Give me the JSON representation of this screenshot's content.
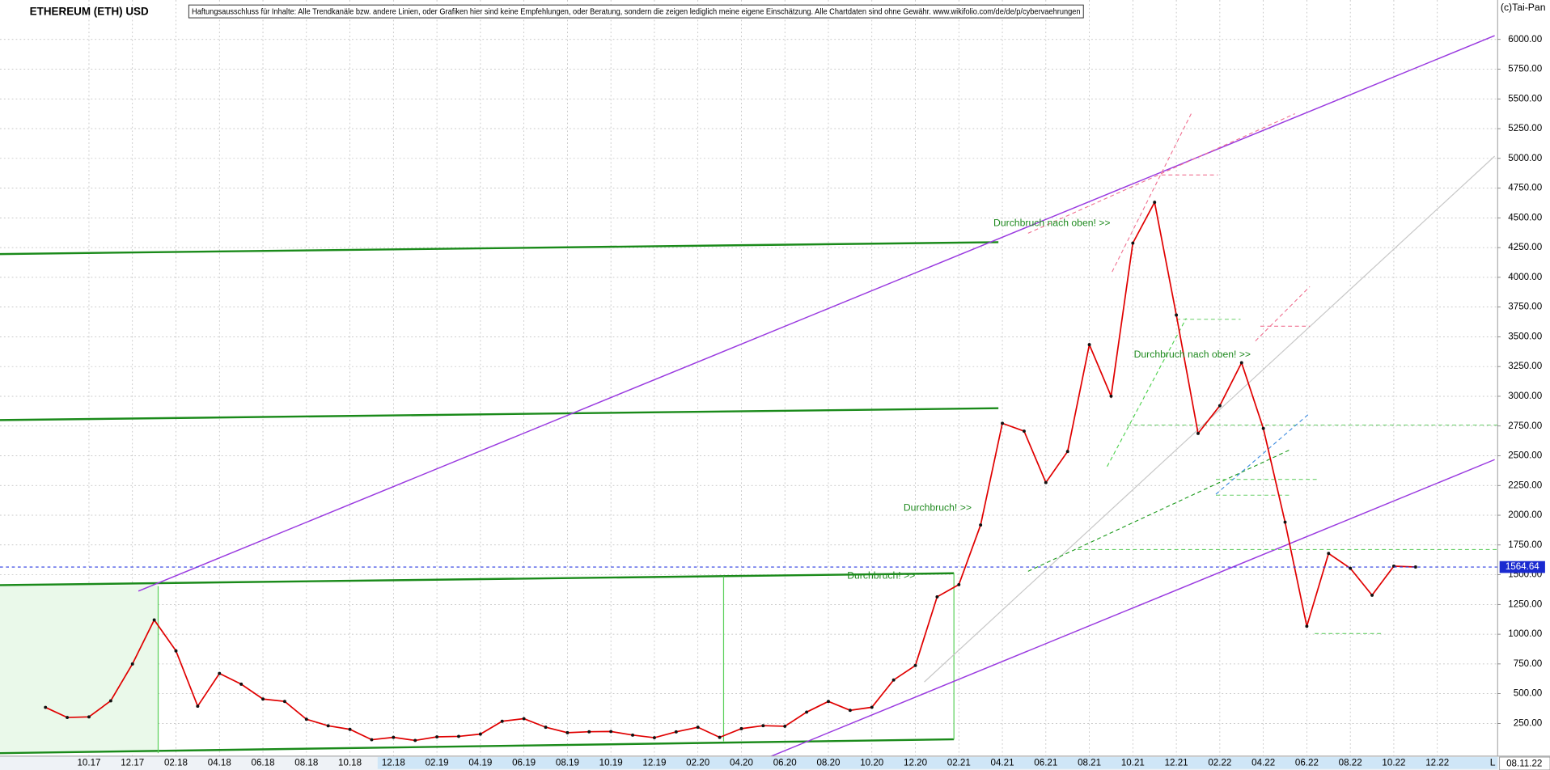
{
  "chart_data": {
    "type": "line",
    "title": "ETHEREUM (ETH) USD",
    "disclaimer": "Haftungsausschluss für Inhalte: Alle Trendkanäle bzw. andere Linien, oder Grafiken hier sind keine Empfehlungen, oder Beratung, sondern die zeigen lediglich meine eigene Einschätzung. Alle Chartdaten sind ohne Gewähr.  www.wikifolio.com/de/de/p/cybervaehrungen",
    "copyright": "(c)Tai-Pan",
    "categories": [
      null,
      null,
      "10.17",
      null,
      "12.17",
      null,
      "02.18",
      null,
      "04.18",
      null,
      "06.18",
      null,
      "08.18",
      null,
      "10.18",
      null,
      "12.18",
      null,
      "02.19",
      null,
      "04.19",
      null,
      "06.19",
      null,
      "08.19",
      null,
      "10.19",
      null,
      "12.19",
      null,
      "02.20",
      null,
      "04.20",
      null,
      "06.20",
      null,
      "08.20",
      null,
      "10.20",
      null,
      "12.20",
      null,
      "02.21",
      null,
      "04.21",
      null,
      "06.21",
      null,
      "08.21",
      null,
      "10.21",
      null,
      "12.21",
      null,
      "02.22",
      null,
      "04.22",
      null,
      "06.22",
      null,
      "08.22",
      null,
      "10.22",
      null,
      "12.22"
    ],
    "series": [
      {
        "color": "#e00000",
        "values": [
          385,
          300,
          305,
          440,
          750,
          1120,
          860,
          395,
          670,
          580,
          455,
          435,
          285,
          230,
          200,
          113,
          133,
          107,
          137,
          141,
          160,
          268,
          290,
          218,
          172,
          180,
          182,
          152,
          130,
          179,
          218,
          133,
          206,
          231,
          226,
          345,
          435,
          360,
          386,
          615,
          737,
          1314,
          1417,
          1918,
          2773,
          2707,
          2275,
          2536,
          3434,
          3001,
          4288,
          4631,
          3683,
          2688,
          2921,
          3282,
          2730,
          1942,
          1067,
          1679,
          1554,
          1328,
          1572,
          1565,
          null
        ]
      }
    ],
    "ylim": [
      0,
      6331
    ],
    "yticks": [
      {
        "value": 250,
        "label": "250.00"
      },
      {
        "value": 500,
        "label": "500.00"
      },
      {
        "value": 750,
        "label": "750.00"
      },
      {
        "value": 1000,
        "label": "1000.00"
      },
      {
        "value": 1250,
        "label": "1250.00"
      },
      {
        "value": 1500,
        "label": "1500.00"
      },
      {
        "value": 1750,
        "label": "1750.00"
      },
      {
        "value": 2000,
        "label": "2000.00"
      },
      {
        "value": 2250,
        "label": "2250.00"
      },
      {
        "value": 2500,
        "label": "2500.00"
      },
      {
        "value": 2750,
        "label": "2750.00"
      },
      {
        "value": 3000,
        "label": "3000.00"
      },
      {
        "value": 3250,
        "label": "3250.00"
      },
      {
        "value": 3500,
        "label": "3500.00"
      },
      {
        "value": 3750,
        "label": "3750.00"
      },
      {
        "value": 4000,
        "label": "4000.00"
      },
      {
        "value": 4250,
        "label": "4250.00"
      },
      {
        "value": 4500,
        "label": "4500.00"
      },
      {
        "value": 4750,
        "label": "4750.00"
      },
      {
        "value": 5000,
        "label": "5000.00"
      },
      {
        "value": 5250,
        "label": "5250.00"
      },
      {
        "value": 5500,
        "label": "5500.00"
      },
      {
        "value": 5750,
        "label": "5750.00"
      },
      {
        "value": 6000,
        "label": "6000.00"
      }
    ],
    "grid": true,
    "last_price": 1564.64,
    "last_date": "08.11.22",
    "scale_mode": "L",
    "annotations": [
      "Durchbruch nach oben! >>",
      "Durchbruch nach oben! >>",
      "Durchbruch! >>",
      "Durchbruch! >>"
    ]
  }
}
